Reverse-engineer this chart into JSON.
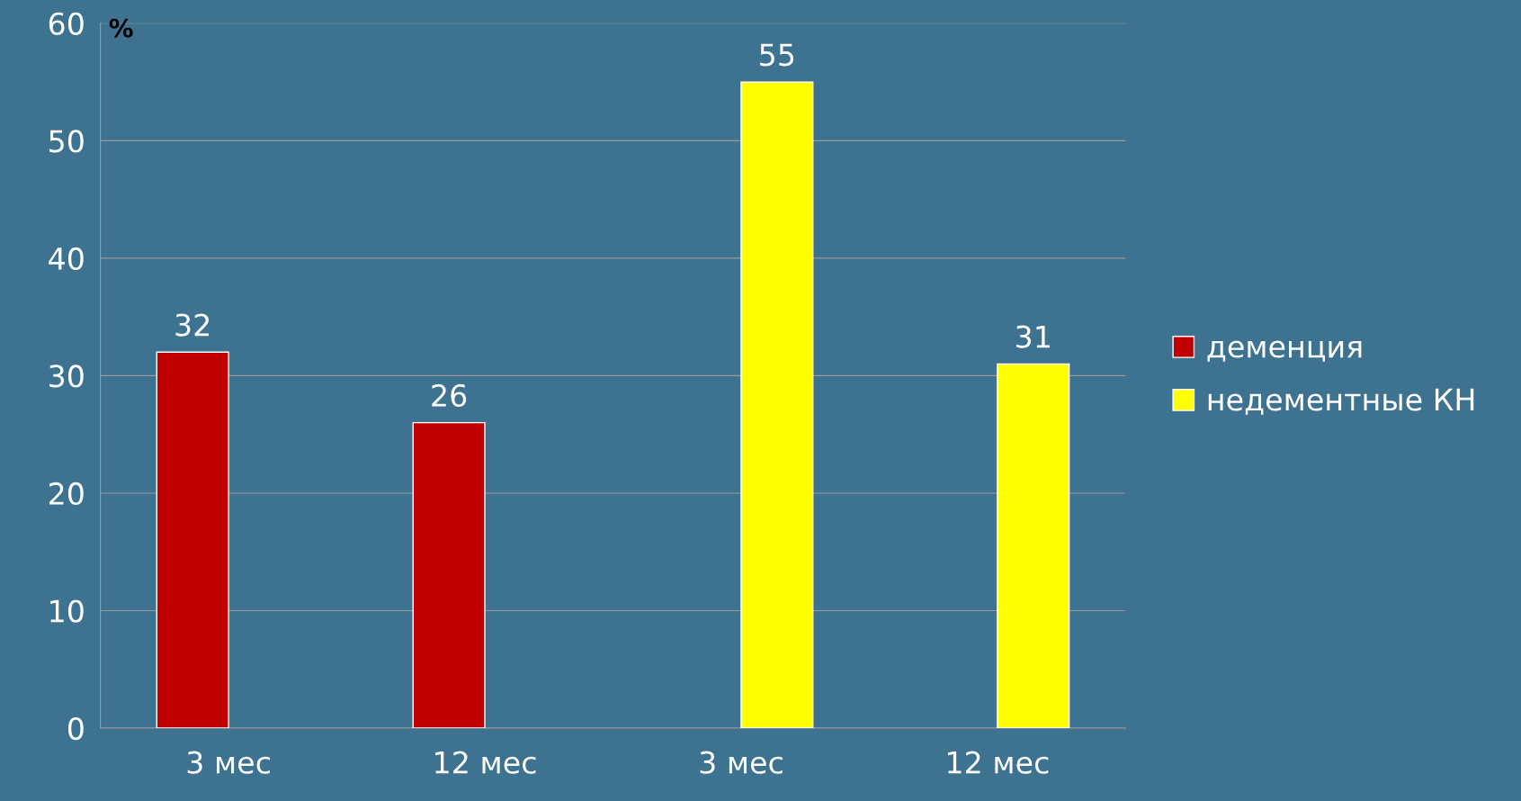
{
  "chart_data": {
    "type": "bar",
    "ylabel": "%",
    "categories": [
      "3 мес",
      "12 мес",
      "3 мес",
      "12 мес"
    ],
    "series": [
      {
        "name": "деменция",
        "color": "#c00000",
        "values": [
          32,
          26,
          null,
          null
        ]
      },
      {
        "name": "недементные КН",
        "color": "#ffff00",
        "values": [
          null,
          null,
          55,
          31
        ]
      }
    ],
    "ylim": [
      0,
      60
    ],
    "yticks": [
      0,
      10,
      20,
      30,
      40,
      50,
      60
    ],
    "grid": "y",
    "legend": "right",
    "data_labels": true
  }
}
